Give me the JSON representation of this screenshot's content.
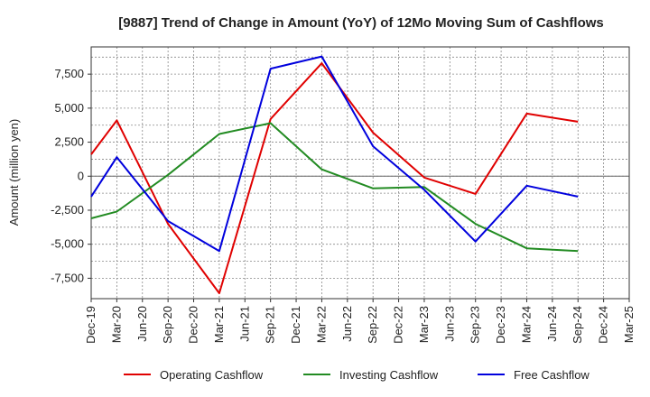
{
  "chart_data": {
    "type": "line",
    "title": "[9887]  Trend of Change in Amount (YoY) of 12Mo Moving Sum of Cashflows",
    "xlabel": "",
    "ylabel": "Amount (million yen)",
    "categories": [
      "Dec-19",
      "Mar-20",
      "Jun-20",
      "Sep-20",
      "Dec-20",
      "Mar-21",
      "Jun-21",
      "Sep-21",
      "Dec-21",
      "Mar-22",
      "Jun-22",
      "Sep-22",
      "Dec-22",
      "Mar-23",
      "Jun-23",
      "Sep-23",
      "Dec-23",
      "Mar-24",
      "Jun-24",
      "Sep-24",
      "Dec-24",
      "Mar-25"
    ],
    "ylim": [
      -9000,
      9500
    ],
    "yticks": [
      -7500,
      -5000,
      -2500,
      0,
      2500,
      5000,
      7500
    ],
    "ytick_labels": [
      "-7,500",
      "-5,000",
      "-2,500",
      "0",
      "2,500",
      "5,000",
      "7,500"
    ],
    "grid": true,
    "legend_position": "bottom",
    "series": [
      {
        "name": "Operating Cashflow",
        "color": "#e00000",
        "values": [
          1600,
          4100,
          null,
          -3500,
          null,
          -8600,
          null,
          4200,
          null,
          8300,
          null,
          3200,
          null,
          -100,
          null,
          -1300,
          null,
          4600,
          null,
          4000,
          null,
          null
        ]
      },
      {
        "name": "Investing Cashflow",
        "color": "#228b22",
        "values": [
          -3100,
          -2600,
          null,
          100,
          null,
          3100,
          null,
          3900,
          null,
          500,
          null,
          -900,
          null,
          -800,
          null,
          -3500,
          null,
          -5300,
          null,
          -5500,
          null,
          null
        ]
      },
      {
        "name": "Free Cashflow",
        "color": "#0000dd",
        "values": [
          -1500,
          1400,
          null,
          -3300,
          null,
          -5500,
          null,
          7900,
          null,
          8800,
          null,
          2200,
          null,
          -1000,
          null,
          -4800,
          null,
          -700,
          null,
          -1500,
          null,
          null
        ]
      }
    ]
  }
}
